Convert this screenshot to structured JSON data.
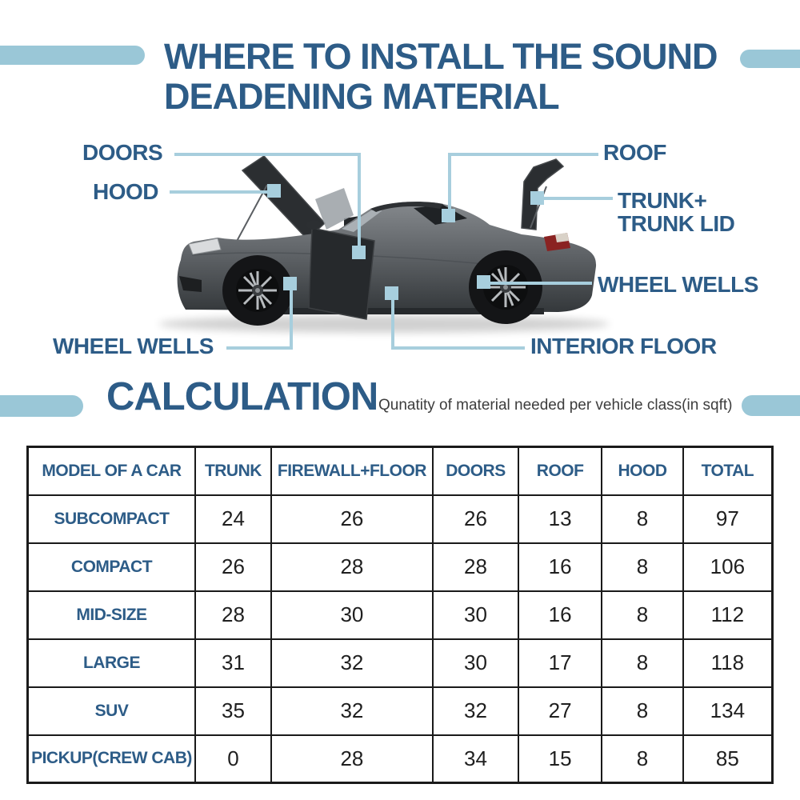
{
  "colors": {
    "dark_blue": "#2D5C87",
    "light_blue": "#9AC7D7",
    "leader_blue": "#A7CEDD",
    "table_border": "#1A1A1A",
    "number_text": "#1F1F1F",
    "subtitle_text": "#3D3D3D"
  },
  "header": {
    "title": "WHERE TO INSTALL THE SOUND\nDEADENING MATERIAL"
  },
  "diagram": {
    "car_description": "gray coupe with open hood, open doors and open trunk lid",
    "labels": [
      {
        "id": "doors",
        "text": "DOORS"
      },
      {
        "id": "hood",
        "text": "HOOD"
      },
      {
        "id": "roof",
        "text": "ROOF"
      },
      {
        "id": "trunk",
        "text": "TRUNK+\nTRUNK LID"
      },
      {
        "id": "wheel-wells-right",
        "text": "WHEEL WELLS"
      },
      {
        "id": "wheel-wells-left",
        "text": "WHEEL WELLS"
      },
      {
        "id": "interior-floor",
        "text": "INTERIOR FLOOR"
      }
    ]
  },
  "calculation": {
    "heading": "CALCULATION",
    "subtitle": "Qunatity of material needed per vehicle class(in sqft)"
  },
  "table": {
    "headers": [
      "MODEL OF A CAR",
      "TRUNK",
      "FIREWALL+FLOOR",
      "DOORS",
      "ROOF",
      "HOOD",
      "TOTAL"
    ],
    "rows": [
      {
        "model": "SUBCOMPACT",
        "values": [
          24,
          26,
          26,
          13,
          8,
          97
        ]
      },
      {
        "model": "COMPACT",
        "values": [
          26,
          28,
          28,
          16,
          8,
          106
        ]
      },
      {
        "model": "MID-SIZE",
        "values": [
          28,
          30,
          30,
          16,
          8,
          112
        ]
      },
      {
        "model": "LARGE",
        "values": [
          31,
          32,
          30,
          17,
          8,
          118
        ]
      },
      {
        "model": "SUV",
        "values": [
          35,
          32,
          32,
          27,
          8,
          134
        ]
      },
      {
        "model": "PICKUP(CREW CAB)",
        "values": [
          0,
          28,
          34,
          15,
          8,
          85
        ]
      }
    ]
  },
  "chart_data": {
    "type": "table",
    "title": "CALCULATION",
    "subtitle": "Qunatity of material needed per vehicle class(in sqft)",
    "columns": [
      "MODEL OF A CAR",
      "TRUNK",
      "FIREWALL+FLOOR",
      "DOORS",
      "ROOF",
      "HOOD",
      "TOTAL"
    ],
    "rows": [
      [
        "SUBCOMPACT",
        24,
        26,
        26,
        13,
        8,
        97
      ],
      [
        "COMPACT",
        26,
        28,
        28,
        16,
        8,
        106
      ],
      [
        "MID-SIZE",
        28,
        30,
        30,
        16,
        8,
        112
      ],
      [
        "LARGE",
        31,
        32,
        30,
        17,
        8,
        118
      ],
      [
        "SUV",
        35,
        32,
        32,
        27,
        8,
        134
      ],
      [
        "PICKUP(CREW CAB)",
        0,
        28,
        34,
        15,
        8,
        85
      ]
    ]
  }
}
